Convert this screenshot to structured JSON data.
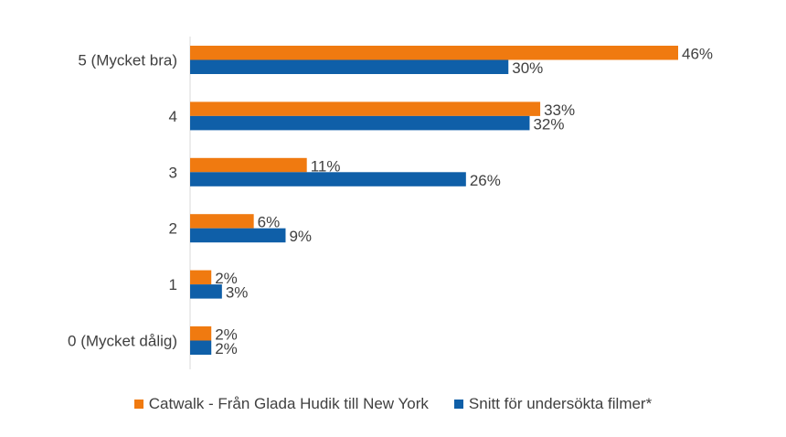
{
  "chart_data": {
    "type": "bar",
    "orientation": "horizontal",
    "categories": [
      "5 (Mycket bra)",
      "4",
      "3",
      "2",
      "1",
      "0 (Mycket dålig)"
    ],
    "series": [
      {
        "name": "Catwalk - Från Glada Hudik till New York",
        "color": "#F07A10",
        "values": [
          46,
          33,
          11,
          6,
          2,
          2
        ],
        "labels": [
          "46%",
          "33%",
          "11%",
          "6%",
          "2%",
          "2%"
        ]
      },
      {
        "name": "Snitt för undersökta filmer*",
        "color": "#0F5FA8",
        "values": [
          30,
          32,
          26,
          9,
          3,
          2
        ],
        "labels": [
          "30%",
          "32%",
          "26%",
          "9%",
          "3%",
          "2%"
        ]
      }
    ],
    "xlim": [
      0,
      50
    ],
    "grid": false,
    "legend_position": "bottom"
  }
}
